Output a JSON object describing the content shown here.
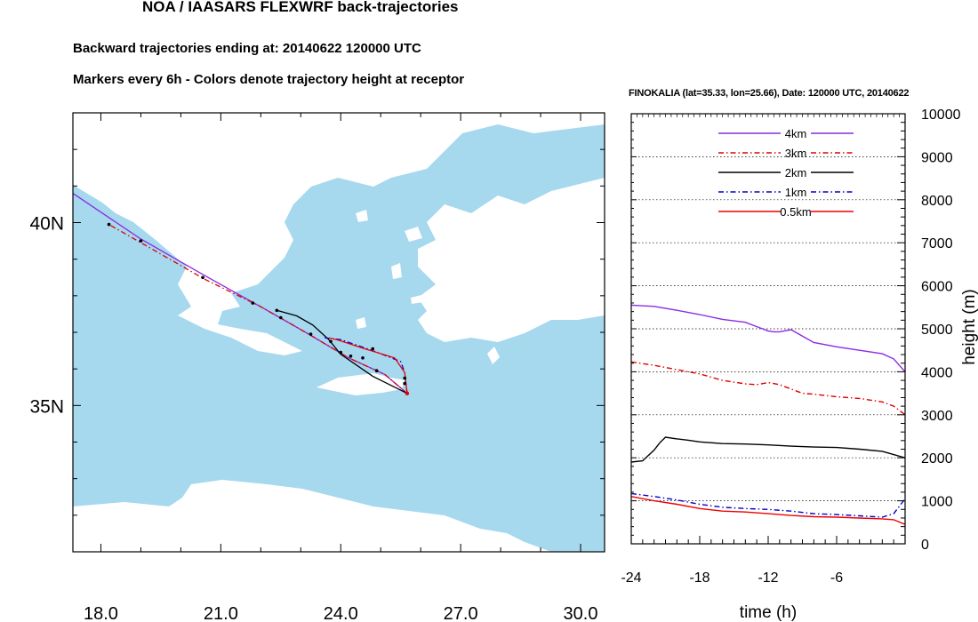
{
  "title": "NOA / IAASARS FLEXWRF back-trajectories",
  "subtitle_ending": "Backward trajectories ending at: 20140622  120000 UTC",
  "subtitle_markers": "Markers every 6h - Colors denote trajectory height at receptor",
  "colors": {
    "water": "#a6d8ee",
    "land": "#ffffff",
    "trajectory_4km": "#8a2be2",
    "trajectory_3km": "#e00000",
    "trajectory_2km": "#000000",
    "trajectory_1km": "#0000cc",
    "trajectory_05km": "#ee0000",
    "markers": "#000000"
  },
  "chart_data": [
    {
      "type": "line",
      "name": "trajectory-map",
      "xlabel": "",
      "ylabel": "",
      "x_ticks": [
        18,
        21,
        24,
        27,
        30
      ],
      "x_tick_labels": [
        "18.0",
        "21.0",
        "24.0",
        "27.0",
        "30.0"
      ],
      "y_ticks": [
        35,
        40
      ],
      "y_tick_labels": [
        "35N",
        "40N"
      ],
      "xlim": [
        17.3,
        30.6
      ],
      "ylim": [
        31.0,
        43.0
      ],
      "receptor": {
        "lon": 25.66,
        "lat": 35.33
      },
      "series": [
        {
          "name": "4km",
          "style": "solid",
          "points": [
            [
              25.66,
              35.33
            ],
            [
              25.1,
              35.85
            ],
            [
              24.2,
              36.3
            ],
            [
              23.2,
              36.95
            ],
            [
              22.0,
              37.7
            ],
            [
              20.6,
              38.55
            ],
            [
              19.0,
              39.55
            ],
            [
              17.3,
              40.8
            ]
          ]
        },
        {
          "name": "3km",
          "style": "dashdot",
          "points": [
            [
              25.66,
              35.33
            ],
            [
              25.1,
              35.85
            ],
            [
              24.2,
              36.3
            ],
            [
              23.2,
              36.95
            ],
            [
              22.0,
              37.7
            ],
            [
              20.6,
              38.45
            ],
            [
              19.0,
              39.45
            ],
            [
              18.2,
              39.95
            ]
          ]
        },
        {
          "name": "2km",
          "style": "solid",
          "points": [
            [
              25.66,
              35.33
            ],
            [
              24.8,
              35.8
            ],
            [
              24.0,
              36.4
            ],
            [
              23.7,
              36.8
            ],
            [
              23.3,
              37.2
            ],
            [
              22.9,
              37.45
            ],
            [
              22.4,
              37.6
            ]
          ]
        },
        {
          "name": "1km",
          "style": "dashdot",
          "points": [
            [
              25.66,
              35.33
            ],
            [
              25.6,
              35.9
            ],
            [
              25.5,
              36.2
            ],
            [
              24.8,
              36.5
            ],
            [
              24.0,
              36.8
            ],
            [
              23.6,
              36.85
            ]
          ]
        },
        {
          "name": "0.5km",
          "style": "solid",
          "points": [
            [
              25.66,
              35.33
            ],
            [
              25.6,
              35.9
            ],
            [
              25.35,
              36.3
            ],
            [
              24.6,
              36.55
            ],
            [
              23.9,
              36.8
            ],
            [
              23.7,
              36.85
            ]
          ]
        }
      ],
      "markers": [
        [
          18.2,
          39.95
        ],
        [
          19.0,
          39.5
        ],
        [
          20.55,
          38.5
        ],
        [
          21.8,
          37.8
        ],
        [
          22.5,
          37.4
        ],
        [
          23.25,
          36.95
        ],
        [
          23.75,
          36.75
        ],
        [
          24.0,
          36.45
        ],
        [
          24.25,
          36.35
        ],
        [
          24.55,
          36.3
        ],
        [
          24.8,
          36.55
        ],
        [
          25.6,
          35.75
        ],
        [
          25.6,
          35.6
        ],
        [
          24.9,
          35.95
        ],
        [
          22.4,
          37.6
        ]
      ]
    },
    {
      "type": "line",
      "name": "height-timeseries",
      "title": "FINOKALIA (lat=35.33,  lon=25.66), Date: 120000 UTC, 20140622",
      "xlabel": "time (h)",
      "ylabel": "height (m)",
      "xlim": [
        -24,
        0
      ],
      "ylim": [
        0,
        10000
      ],
      "x_ticks": [
        -24,
        -18,
        -12,
        -6
      ],
      "x_tick_labels": [
        "-24",
        "-18",
        "-12",
        "-6"
      ],
      "y_ticks": [
        0,
        1000,
        2000,
        3000,
        4000,
        5000,
        6000,
        7000,
        8000,
        9000,
        10000
      ],
      "y_tick_labels": [
        "0",
        "1000",
        "2000",
        "3000",
        "4000",
        "5000",
        "6000",
        "7000",
        "8000",
        "9000",
        "10000"
      ],
      "grid": "dotted horizontal",
      "legend": [
        "4km",
        "3km",
        "2km",
        "1km",
        "0.5km"
      ],
      "legend_position": "top",
      "series": [
        {
          "name": "4km",
          "style": "solid",
          "x": [
            -24,
            -22,
            -20,
            -18,
            -16,
            -14,
            -13,
            -12,
            -11.5,
            -11,
            -10,
            -8,
            -6,
            -4,
            -2,
            -1,
            0
          ],
          "y": [
            5550,
            5520,
            5430,
            5330,
            5220,
            5150,
            5050,
            4950,
            4930,
            4930,
            4980,
            4680,
            4580,
            4500,
            4420,
            4300,
            4000
          ]
        },
        {
          "name": "3km",
          "style": "dashdot",
          "x": [
            -24,
            -22,
            -20,
            -18,
            -16,
            -14,
            -13,
            -12,
            -11,
            -10,
            -9,
            -8,
            -6,
            -4,
            -2,
            -1,
            0
          ],
          "y": [
            4230,
            4150,
            4050,
            3950,
            3800,
            3720,
            3700,
            3750,
            3700,
            3600,
            3500,
            3480,
            3420,
            3380,
            3300,
            3200,
            3000
          ]
        },
        {
          "name": "2km",
          "style": "solid",
          "x": [
            -24,
            -23,
            -22,
            -21.5,
            -21,
            -20,
            -19,
            -18,
            -16,
            -14,
            -12,
            -10,
            -8,
            -6,
            -4,
            -2,
            0
          ],
          "y": [
            1900,
            1930,
            2180,
            2350,
            2480,
            2440,
            2410,
            2370,
            2330,
            2320,
            2300,
            2270,
            2250,
            2240,
            2200,
            2150,
            2000
          ]
        },
        {
          "name": "1km",
          "style": "dashdot",
          "x": [
            -24,
            -22,
            -20,
            -18,
            -16,
            -14,
            -12,
            -10,
            -8,
            -6,
            -4,
            -2,
            -1,
            0
          ],
          "y": [
            1170,
            1100,
            1020,
            920,
            850,
            820,
            800,
            760,
            700,
            680,
            650,
            620,
            700,
            1050
          ]
        },
        {
          "name": "0.5km",
          "style": "solid",
          "x": [
            -24,
            -22,
            -20,
            -18,
            -16,
            -14,
            -12,
            -10,
            -8,
            -6,
            -4,
            -2,
            -1,
            0
          ],
          "y": [
            1100,
            1000,
            920,
            820,
            760,
            740,
            700,
            660,
            630,
            620,
            600,
            580,
            560,
            450
          ]
        }
      ]
    }
  ]
}
